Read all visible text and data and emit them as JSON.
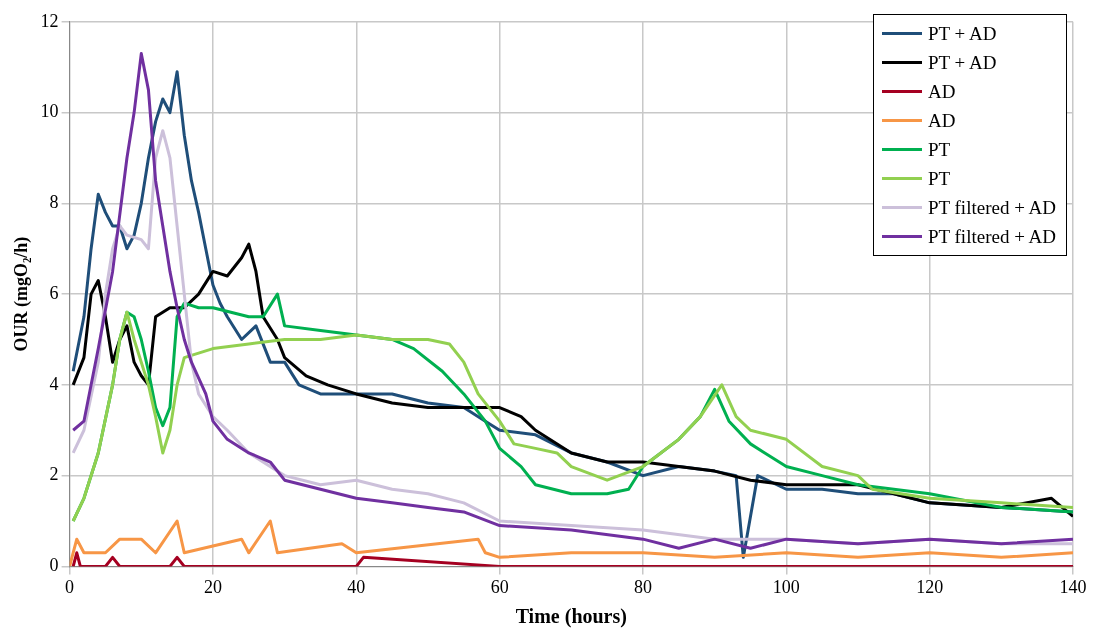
{
  "chart_data": {
    "type": "line",
    "xlabel": "Time (hours)",
    "ylabel": "OUR (mgO₂/h)",
    "xlim": [
      0,
      140
    ],
    "xticks": [
      0,
      20,
      40,
      60,
      80,
      100,
      120,
      140
    ],
    "ylim": [
      0,
      12
    ],
    "yticks": [
      0,
      2,
      4,
      6,
      8,
      10,
      12
    ],
    "grid": true,
    "legend": "top right",
    "marker": "none",
    "line_style": "solid",
    "series": [
      {
        "name": "PT + AD",
        "color": "#1f4e79",
        "x": [
          0.5,
          2,
          3,
          4,
          5,
          6,
          7,
          8,
          9,
          10,
          11,
          12,
          13,
          14,
          15,
          16,
          17,
          18,
          19,
          20,
          21,
          22,
          24,
          26,
          28,
          30,
          32,
          35,
          40,
          45,
          50,
          55,
          58,
          60,
          65,
          70,
          75,
          80,
          85,
          90,
          93,
          94,
          96,
          100,
          105,
          110,
          115,
          120,
          130,
          140
        ],
        "values": [
          4.3,
          5.5,
          7,
          8.2,
          7.8,
          7.5,
          7.5,
          7,
          7.3,
          8,
          9,
          9.8,
          10.3,
          10,
          10.9,
          9.5,
          8.5,
          7.8,
          7,
          6.2,
          5.8,
          5.5,
          5,
          5.3,
          4.5,
          4.5,
          4,
          3.8,
          3.8,
          3.8,
          3.6,
          3.5,
          3.2,
          3,
          2.9,
          2.5,
          2.3,
          2,
          2.2,
          2.1,
          2,
          0.2,
          2,
          1.7,
          1.7,
          1.6,
          1.6,
          1.4,
          1.3,
          1.2
        ]
      },
      {
        "name": "PT + AD",
        "color": "#000000",
        "x": [
          0.5,
          2,
          3,
          4,
          5,
          6,
          7,
          8,
          9,
          10,
          11,
          12,
          13,
          14,
          16,
          18,
          20,
          22,
          24,
          25,
          26,
          27,
          29,
          30,
          33,
          36,
          40,
          45,
          50,
          55,
          60,
          63,
          65,
          70,
          75,
          80,
          85,
          90,
          95,
          100,
          110,
          115,
          120,
          130,
          137,
          140
        ],
        "values": [
          4,
          4.6,
          6,
          6.3,
          5.5,
          4.5,
          5,
          5.3,
          4.5,
          4.2,
          4,
          5.5,
          5.6,
          5.7,
          5.7,
          6,
          6.5,
          6.4,
          6.8,
          7.1,
          6.5,
          5.5,
          5,
          4.6,
          4.2,
          4,
          3.8,
          3.6,
          3.5,
          3.5,
          3.5,
          3.3,
          3,
          2.5,
          2.3,
          2.3,
          2.2,
          2.1,
          1.9,
          1.8,
          1.8,
          1.6,
          1.4,
          1.3,
          1.5,
          1.1
        ]
      },
      {
        "name": "AD",
        "color": "#a50021",
        "x": [
          0.5,
          1,
          1.5,
          5,
          6,
          7,
          14,
          15,
          16,
          40,
          41,
          60,
          90,
          140
        ],
        "values": [
          0,
          0.3,
          0,
          0,
          0.2,
          0,
          0,
          0.2,
          0,
          0,
          0.2,
          0,
          0,
          0
        ]
      },
      {
        "name": "AD",
        "color": "#f79646",
        "x": [
          0,
          1,
          2,
          5,
          7,
          10,
          12,
          15,
          16,
          24,
          25,
          28,
          29,
          38,
          40,
          57,
          58,
          60,
          70,
          80,
          90,
          100,
          110,
          120,
          130,
          140
        ],
        "values": [
          0,
          0.6,
          0.3,
          0.3,
          0.6,
          0.6,
          0.3,
          1,
          0.3,
          0.6,
          0.3,
          1,
          0.3,
          0.5,
          0.3,
          0.6,
          0.3,
          0.2,
          0.3,
          0.3,
          0.2,
          0.3,
          0.2,
          0.3,
          0.2,
          0.3
        ]
      },
      {
        "name": "PT",
        "color": "#00b050",
        "x": [
          0.5,
          2,
          4,
          6,
          7,
          8,
          9,
          10,
          11,
          12,
          13,
          14,
          15,
          16,
          18,
          20,
          25,
          27,
          29,
          30,
          35,
          40,
          45,
          48,
          52,
          55,
          58,
          60,
          63,
          65,
          70,
          75,
          78,
          80,
          85,
          88,
          90,
          92,
          95,
          100,
          105,
          110,
          120,
          130,
          140
        ],
        "values": [
          1,
          1.5,
          2.5,
          4,
          5,
          5.6,
          5.5,
          5,
          4.3,
          3.5,
          3.1,
          3.5,
          5.5,
          5.8,
          5.7,
          5.7,
          5.5,
          5.5,
          6,
          5.3,
          5.2,
          5.1,
          5,
          4.8,
          4.3,
          3.8,
          3.2,
          2.6,
          2.2,
          1.8,
          1.6,
          1.6,
          1.7,
          2.2,
          2.8,
          3.3,
          3.9,
          3.2,
          2.7,
          2.2,
          2,
          1.8,
          1.6,
          1.3,
          1.2
        ]
      },
      {
        "name": "PT",
        "color": "#92d050",
        "x": [
          0.5,
          2,
          4,
          6,
          7,
          8,
          9,
          10,
          11,
          12,
          13,
          14,
          15,
          16,
          18,
          20,
          25,
          30,
          35,
          40,
          45,
          50,
          53,
          55,
          57,
          60,
          62,
          65,
          68,
          70,
          75,
          80,
          85,
          88,
          91,
          93,
          95,
          100,
          105,
          110,
          112,
          120,
          130,
          140
        ],
        "values": [
          1,
          1.5,
          2.5,
          4,
          5,
          5.6,
          5,
          4.5,
          4,
          3.3,
          2.5,
          3,
          4,
          4.6,
          4.7,
          4.8,
          4.9,
          5,
          5,
          5.1,
          5,
          5,
          4.9,
          4.5,
          3.8,
          3.2,
          2.7,
          2.6,
          2.5,
          2.2,
          1.9,
          2.2,
          2.8,
          3.3,
          4,
          3.3,
          3,
          2.8,
          2.2,
          2,
          1.7,
          1.5,
          1.4,
          1.3
        ]
      },
      {
        "name": "PT filtered + AD",
        "color": "#ccc0da",
        "x": [
          0.5,
          2,
          4,
          5,
          6,
          7,
          8,
          10,
          11,
          12,
          13,
          14,
          15,
          16,
          17,
          18,
          20,
          22,
          25,
          30,
          35,
          40,
          45,
          50,
          55,
          60,
          70,
          80,
          90,
          100,
          110,
          120,
          130,
          140
        ],
        "values": [
          2.5,
          3,
          4.5,
          6,
          7,
          7.5,
          7.3,
          7.2,
          7,
          9,
          9.6,
          9,
          7.5,
          6,
          4.5,
          3.8,
          3.3,
          3,
          2.5,
          2,
          1.8,
          1.9,
          1.7,
          1.6,
          1.4,
          1,
          0.9,
          0.8,
          0.6,
          0.6,
          0.5,
          0.6,
          0.5,
          0.5
        ]
      },
      {
        "name": "PT filtered + AD",
        "color": "#7030a0",
        "x": [
          0.5,
          2,
          4,
          6,
          8,
          9,
          10,
          11,
          12,
          13,
          14,
          15,
          16,
          17,
          19,
          20,
          22,
          25,
          28,
          30,
          35,
          40,
          45,
          50,
          55,
          60,
          70,
          80,
          85,
          90,
          95,
          100,
          110,
          120,
          130,
          140
        ],
        "values": [
          3,
          3.2,
          4.8,
          6.5,
          9,
          10,
          11.3,
          10.5,
          8.5,
          7.5,
          6.5,
          5.7,
          5,
          4.5,
          3.8,
          3.2,
          2.8,
          2.5,
          2.3,
          1.9,
          1.7,
          1.5,
          1.4,
          1.3,
          1.2,
          0.9,
          0.8,
          0.6,
          0.4,
          0.6,
          0.4,
          0.6,
          0.5,
          0.6,
          0.5,
          0.6
        ]
      }
    ]
  }
}
